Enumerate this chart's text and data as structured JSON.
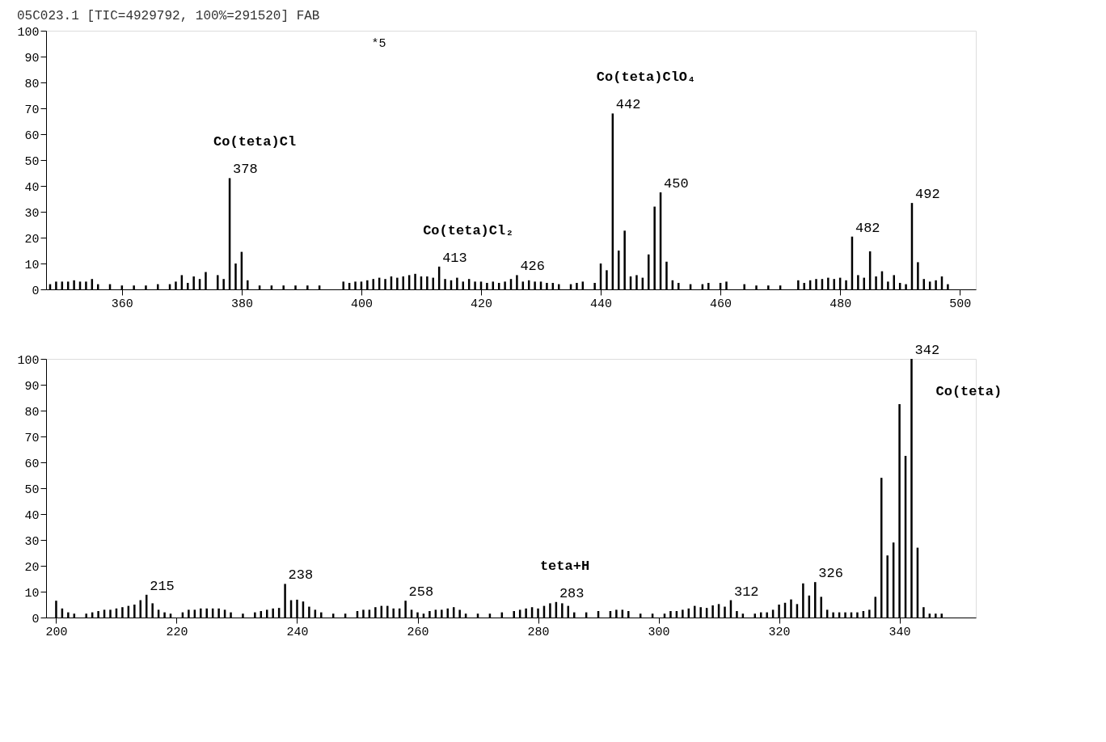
{
  "chart_data": [
    {
      "type": "bar",
      "title": "05C023.1 [TIC=4929792, 100%=291520] FAB",
      "x": [
        348,
        349,
        350,
        351,
        352,
        353,
        354,
        355,
        356,
        358,
        360,
        362,
        364,
        366,
        368,
        369,
        370,
        371,
        372,
        373,
        374,
        376,
        377,
        378,
        379,
        380,
        381,
        383,
        385,
        387,
        389,
        391,
        393,
        397,
        398,
        399,
        400,
        401,
        402,
        403,
        404,
        405,
        406,
        407,
        408,
        409,
        410,
        411,
        412,
        413,
        414,
        415,
        416,
        417,
        418,
        419,
        420,
        421,
        422,
        423,
        424,
        425,
        426,
        427,
        428,
        429,
        430,
        431,
        432,
        433,
        435,
        436,
        437,
        439,
        440,
        441,
        442,
        443,
        444,
        445,
        446,
        447,
        448,
        449,
        450,
        451,
        452,
        453,
        455,
        457,
        458,
        460,
        461,
        464,
        466,
        468,
        470,
        473,
        474,
        475,
        476,
        477,
        478,
        479,
        480,
        481,
        482,
        483,
        484,
        485,
        486,
        487,
        488,
        489,
        490,
        491,
        492,
        493,
        494,
        495,
        496,
        497,
        498
      ],
      "values": [
        2,
        3,
        3,
        3,
        3.5,
        3,
        3,
        4,
        2,
        2,
        1.5,
        1.5,
        1.5,
        2,
        2,
        3,
        5.5,
        2.5,
        5,
        4,
        6.7,
        5.5,
        4,
        43,
        10,
        14.5,
        3.5,
        1.5,
        1.5,
        1.5,
        1.5,
        1.5,
        1.5,
        3,
        2.5,
        3,
        3,
        3.5,
        4,
        4.5,
        4,
        5,
        4.5,
        5,
        5.5,
        6,
        5,
        5,
        4.5,
        8.8,
        4,
        3.5,
        4.5,
        3,
        4,
        3,
        3,
        2.5,
        3,
        2.5,
        3,
        4,
        5.5,
        3,
        3.5,
        3,
        3,
        2.5,
        2.5,
        2,
        2,
        2.5,
        3,
        2.5,
        10,
        7.4,
        68,
        15,
        22.7,
        5,
        5.5,
        4.5,
        13.5,
        32,
        37.5,
        10.7,
        3.5,
        2.5,
        2,
        2,
        2.5,
        2.5,
        3,
        2,
        1.5,
        1.5,
        1.5,
        3.5,
        2.5,
        3.5,
        4,
        4,
        4.5,
        4,
        4.5,
        3.5,
        20.4,
        5.5,
        4.5,
        14.7,
        5,
        7,
        3,
        5.5,
        2.5,
        2,
        33.4,
        10.5,
        4,
        3,
        3.5,
        5,
        2
      ],
      "color": "#000000",
      "xlim": [
        348,
        502
      ],
      "ylim": [
        0,
        100
      ],
      "xticks": [
        360,
        380,
        400,
        420,
        440,
        460,
        480,
        500
      ],
      "yticks": [
        0,
        10,
        20,
        30,
        40,
        50,
        60,
        70,
        80,
        90,
        100
      ],
      "grid": false,
      "annotations": [
        "*5",
        {
          "text": "378",
          "x": 378,
          "y": 43
        },
        {
          "text": "Co(teta)Cl",
          "x": 378,
          "y": 43
        },
        {
          "text": "413",
          "x": 413,
          "y": 8.8
        },
        {
          "text": "Co(teta)Cl₂",
          "x": 413,
          "y": 8.8
        },
        {
          "text": "426",
          "x": 426,
          "y": 5.5
        },
        {
          "text": "442",
          "x": 442,
          "y": 68
        },
        {
          "text": "Co(teta)ClO₄",
          "x": 442,
          "y": 68
        },
        {
          "text": "450",
          "x": 450,
          "y": 37.5
        },
        {
          "text": "482",
          "x": 482,
          "y": 20.4
        },
        {
          "text": "492",
          "x": 492,
          "y": 33.4
        }
      ]
    },
    {
      "type": "bar",
      "x": [
        200,
        201,
        202,
        203,
        205,
        206,
        207,
        208,
        209,
        210,
        211,
        212,
        213,
        214,
        215,
        216,
        217,
        218,
        219,
        221,
        222,
        223,
        224,
        225,
        226,
        227,
        228,
        229,
        231,
        233,
        234,
        235,
        236,
        237,
        238,
        239,
        240,
        241,
        242,
        243,
        244,
        246,
        248,
        250,
        251,
        252,
        253,
        254,
        255,
        256,
        257,
        258,
        259,
        260,
        261,
        262,
        263,
        264,
        265,
        266,
        267,
        268,
        270,
        272,
        274,
        276,
        277,
        278,
        279,
        280,
        281,
        282,
        283,
        284,
        285,
        286,
        288,
        290,
        292,
        293,
        294,
        295,
        297,
        299,
        301,
        302,
        303,
        304,
        305,
        306,
        307,
        308,
        309,
        310,
        311,
        312,
        313,
        314,
        316,
        317,
        318,
        319,
        320,
        321,
        322,
        323,
        324,
        325,
        326,
        327,
        328,
        329,
        330,
        331,
        332,
        333,
        334,
        335,
        336,
        337,
        338,
        339,
        340,
        341,
        342,
        343,
        344,
        345,
        346,
        347
      ],
      "values": [
        6.5,
        3.5,
        2,
        1.5,
        1.5,
        2,
        2.5,
        3,
        3,
        3.5,
        4,
        4.5,
        5,
        6.7,
        8.8,
        5.5,
        3,
        2,
        1.5,
        2,
        3,
        3,
        3.5,
        3.5,
        3.5,
        3.5,
        3,
        2,
        1.5,
        2,
        2.5,
        3,
        3.5,
        3.7,
        13,
        6.7,
        6.9,
        6.2,
        4.2,
        3,
        2,
        1.5,
        1.5,
        2.5,
        3,
        3,
        4,
        4.5,
        4.5,
        3.5,
        3.5,
        6.5,
        3,
        2,
        1.5,
        2.5,
        3,
        3,
        3.5,
        4,
        3,
        1.5,
        1.5,
        1.5,
        2,
        2.5,
        3,
        3.5,
        4,
        3.5,
        4.5,
        5.5,
        6,
        5.5,
        4.5,
        2,
        2,
        2.5,
        2.5,
        3,
        3,
        2.5,
        1.5,
        1.5,
        1.5,
        2.5,
        2.5,
        3,
        3.5,
        4.5,
        4,
        3.7,
        4.7,
        5.2,
        4.2,
        6.7,
        2.5,
        1.5,
        1.5,
        2,
        2,
        3,
        5,
        5.7,
        7,
        5.2,
        13.2,
        8.5,
        13.7,
        8,
        3,
        2,
        2,
        2,
        2,
        2,
        2.5,
        3,
        8,
        54,
        24,
        29,
        82.5,
        62.5,
        100,
        27,
        4,
        1.5,
        1.5,
        1.5
      ],
      "color": "#000000",
      "xlim": [
        199,
        352
      ],
      "ylim": [
        0,
        100
      ],
      "xticks": [
        200,
        220,
        240,
        260,
        280,
        300,
        320,
        340
      ],
      "yticks": [
        0,
        10,
        20,
        30,
        40,
        50,
        60,
        70,
        80,
        90,
        100
      ],
      "grid": false,
      "annotations": [
        {
          "text": "215",
          "x": 215,
          "y": 8.8
        },
        {
          "text": "238",
          "x": 238,
          "y": 13
        },
        {
          "text": "258",
          "x": 258,
          "y": 6.5
        },
        {
          "text": "283",
          "x": 283,
          "y": 6
        },
        {
          "text": "teta+H",
          "x": 283,
          "y": 6
        },
        {
          "text": "312",
          "x": 312,
          "y": 6.7
        },
        {
          "text": "326",
          "x": 326,
          "y": 13.7
        },
        {
          "text": "342",
          "x": 342,
          "y": 100
        },
        {
          "text": "Co(teta)",
          "x": 342,
          "y": 100
        }
      ]
    }
  ]
}
